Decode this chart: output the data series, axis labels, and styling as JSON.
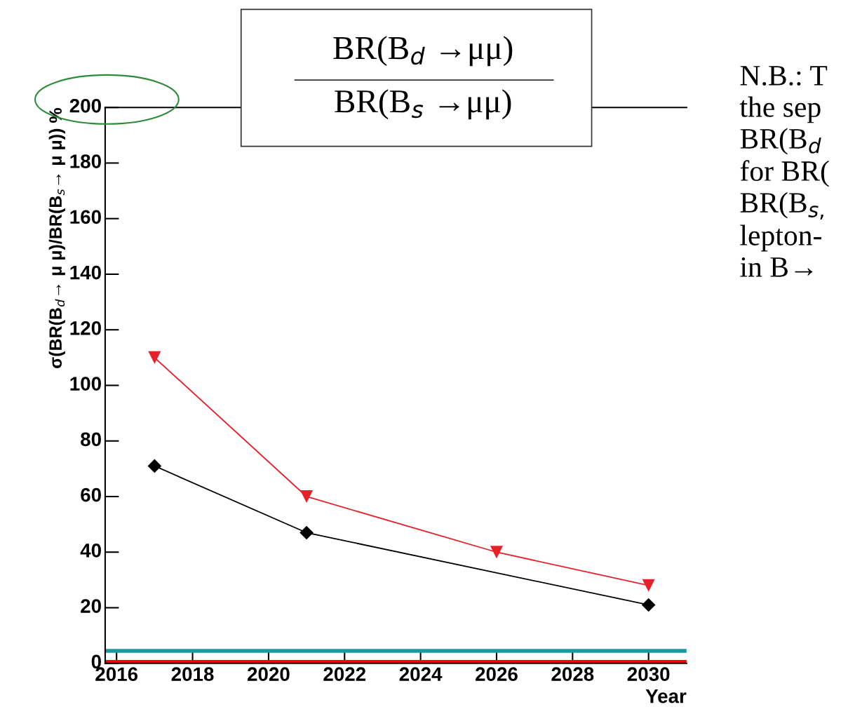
{
  "chart_data": {
    "type": "line",
    "xlabel": "Year",
    "ylabel": "σ(BR(B$_{d}$→ μ μ)/BR(B$_{s}$→ μ μ)) %",
    "xlim": [
      2015.7,
      2031
    ],
    "xticks": [
      2016,
      2018,
      2020,
      2022,
      2024,
      2026,
      2028,
      2030
    ],
    "ylim": [
      0,
      200
    ],
    "yticks": [
      0,
      20,
      40,
      60,
      80,
      100,
      120,
      140,
      160,
      180,
      200
    ],
    "grid": false,
    "legend": false,
    "line_style": "solid",
    "series": [
      {
        "color": "#e8202a",
        "marker": "triangle",
        "x": [
          2017,
          2021,
          2026,
          2030
        ],
        "values": [
          110,
          60,
          40,
          28
        ]
      },
      {
        "color": "#000000",
        "marker": "diamond",
        "x": [
          2017,
          2021,
          2030
        ],
        "values": [
          71,
          47,
          21
        ]
      }
    ],
    "ref_lines": [
      {
        "axis": "y",
        "value": 4.5,
        "label": null,
        "color": "#1a9aa0"
      },
      {
        "axis": "y",
        "value": 0.5,
        "label": null,
        "color": "#ff0000"
      }
    ],
    "annotations": [
      "BR(B$_{d}$ →μμ)",
      "BR(B$_{s}$ →μμ)",
      "N.B.: T\nthe sep\nBR(B$_{d}$\nfor BR(\nBR(B$_{s,}$\nlepton-\nin B→"
    ]
  }
}
